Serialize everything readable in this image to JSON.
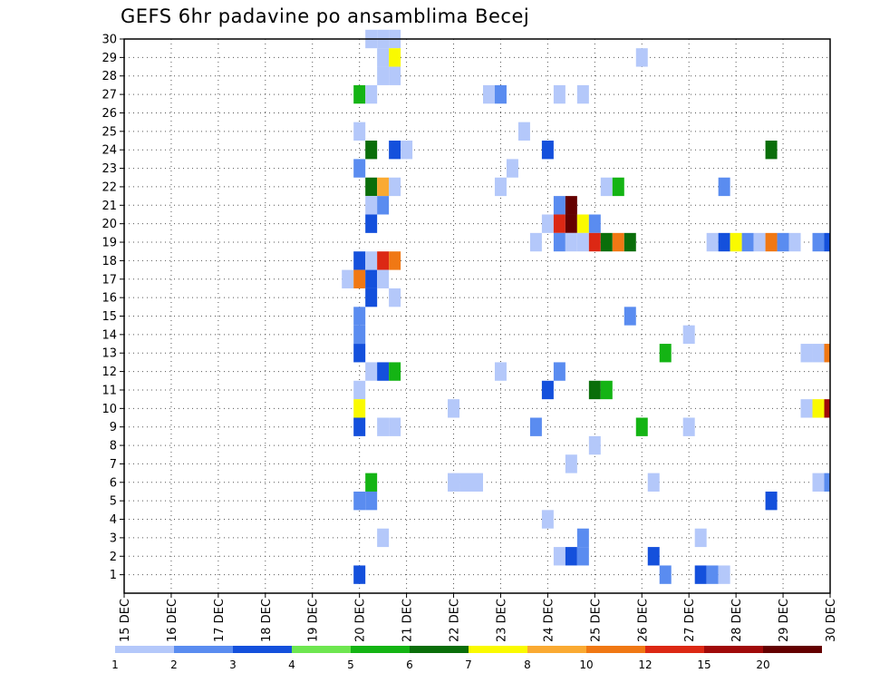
{
  "chart_data": {
    "type": "heatmap",
    "title": "GEFS 6hr padavine po ansamblima Becej",
    "x_ticks": [
      "15 DEC",
      "16 DEC",
      "17 DEC",
      "18 DEC",
      "19 DEC",
      "20 DEC",
      "21 DEC",
      "22 DEC",
      "23 DEC",
      "24 DEC",
      "25 DEC",
      "26 DEC",
      "27 DEC",
      "28 DEC",
      "29 DEC",
      "30 DEC"
    ],
    "y_ticks": [
      1,
      2,
      3,
      4,
      5,
      6,
      7,
      8,
      9,
      10,
      11,
      12,
      13,
      14,
      15,
      16,
      17,
      18,
      19,
      20,
      21,
      22,
      23,
      24,
      25,
      26,
      27,
      28,
      29,
      30
    ],
    "legend_labels": [
      "1",
      "2",
      "3",
      "4",
      "5",
      "6",
      "7",
      "8",
      "10",
      "12",
      "15",
      "20"
    ],
    "legend_colors": [
      "#b4c8fa",
      "#5a8cf0",
      "#1450dc",
      "#6ee650",
      "#14b414",
      "#0a6e0a",
      "#fafa00",
      "#faaa32",
      "#f07814",
      "#dc2814",
      "#a00a0a",
      "#640000"
    ],
    "cells_note": "each cell: [day (x, days after 15 DEC), member (y), value (mm)]",
    "cells": [
      [
        5.25,
        30,
        1
      ],
      [
        5.5,
        30,
        1
      ],
      [
        5.75,
        30,
        1
      ],
      [
        5.5,
        29,
        1
      ],
      [
        5.75,
        29,
        7
      ],
      [
        11.0,
        29,
        1
      ],
      [
        5.5,
        28,
        1
      ],
      [
        5.75,
        28,
        1
      ],
      [
        5.0,
        27,
        5
      ],
      [
        5.25,
        27,
        1
      ],
      [
        7.75,
        27,
        1
      ],
      [
        8.0,
        27,
        2
      ],
      [
        9.25,
        27,
        1
      ],
      [
        9.75,
        27,
        1
      ],
      [
        5.0,
        25,
        1
      ],
      [
        8.5,
        25,
        1
      ],
      [
        5.25,
        24,
        6
      ],
      [
        5.75,
        24,
        3
      ],
      [
        6.0,
        24,
        1
      ],
      [
        9.0,
        24,
        3
      ],
      [
        13.75,
        24,
        6
      ],
      [
        5.0,
        23,
        2
      ],
      [
        8.25,
        23,
        1
      ],
      [
        5.25,
        22,
        6
      ],
      [
        5.5,
        22,
        8
      ],
      [
        5.75,
        22,
        1
      ],
      [
        8.0,
        22,
        1
      ],
      [
        10.25,
        22,
        1
      ],
      [
        10.5,
        22,
        5
      ],
      [
        12.75,
        22,
        2
      ],
      [
        5.25,
        21,
        1
      ],
      [
        5.5,
        21,
        2
      ],
      [
        9.25,
        21,
        2
      ],
      [
        9.5,
        21,
        20
      ],
      [
        5.25,
        20,
        3
      ],
      [
        9.0,
        20,
        1
      ],
      [
        9.25,
        20,
        12
      ],
      [
        9.5,
        20,
        20
      ],
      [
        9.75,
        20,
        7
      ],
      [
        10.0,
        20,
        2
      ],
      [
        8.75,
        19,
        1
      ],
      [
        9.25,
        19,
        2
      ],
      [
        9.5,
        19,
        1
      ],
      [
        9.75,
        19,
        1
      ],
      [
        10.0,
        19,
        12
      ],
      [
        10.25,
        19,
        6
      ],
      [
        10.5,
        19,
        10
      ],
      [
        10.75,
        19,
        6
      ],
      [
        12.5,
        19,
        1
      ],
      [
        12.75,
        19,
        3
      ],
      [
        13.0,
        19,
        7
      ],
      [
        13.25,
        19,
        2
      ],
      [
        13.5,
        19,
        1
      ],
      [
        13.75,
        19,
        10
      ],
      [
        14.0,
        19,
        2
      ],
      [
        14.25,
        19,
        1
      ],
      [
        14.75,
        19,
        2
      ],
      [
        15.0,
        19,
        3
      ],
      [
        5.0,
        18,
        3
      ],
      [
        5.25,
        18,
        1
      ],
      [
        5.5,
        18,
        12
      ],
      [
        5.75,
        18,
        10
      ],
      [
        4.75,
        17,
        1
      ],
      [
        5.0,
        17,
        10
      ],
      [
        5.25,
        17,
        3
      ],
      [
        5.5,
        17,
        1
      ],
      [
        5.25,
        16,
        3
      ],
      [
        5.75,
        16,
        1
      ],
      [
        5.0,
        15,
        2
      ],
      [
        10.75,
        15,
        2
      ],
      [
        5.0,
        14,
        2
      ],
      [
        12.0,
        14,
        1
      ],
      [
        5.0,
        13,
        3
      ],
      [
        11.5,
        13,
        5
      ],
      [
        14.5,
        13,
        1
      ],
      [
        14.75,
        13,
        1
      ],
      [
        15.0,
        13,
        10
      ],
      [
        5.25,
        12,
        1
      ],
      [
        5.5,
        12,
        3
      ],
      [
        5.75,
        12,
        5
      ],
      [
        8.0,
        12,
        1
      ],
      [
        9.25,
        12,
        2
      ],
      [
        5.0,
        11,
        1
      ],
      [
        9.0,
        11,
        3
      ],
      [
        10.0,
        11,
        6
      ],
      [
        10.25,
        11,
        5
      ],
      [
        5.0,
        10,
        7
      ],
      [
        7.0,
        10,
        1
      ],
      [
        14.5,
        10,
        1
      ],
      [
        14.75,
        10,
        7
      ],
      [
        15.0,
        10,
        15
      ],
      [
        5.0,
        9,
        3
      ],
      [
        5.5,
        9,
        1
      ],
      [
        5.75,
        9,
        1
      ],
      [
        8.75,
        9,
        2
      ],
      [
        11.0,
        9,
        5
      ],
      [
        12.0,
        9,
        1
      ],
      [
        10.0,
        8,
        1
      ],
      [
        9.5,
        7,
        1
      ],
      [
        5.25,
        6,
        5
      ],
      [
        7.0,
        6,
        1
      ],
      [
        7.25,
        6,
        1
      ],
      [
        7.5,
        6,
        1
      ],
      [
        11.25,
        6,
        1
      ],
      [
        14.75,
        6,
        1
      ],
      [
        15.0,
        6,
        2
      ],
      [
        5.0,
        5,
        2
      ],
      [
        5.25,
        5,
        2
      ],
      [
        13.75,
        5,
        3
      ],
      [
        9.0,
        4,
        1
      ],
      [
        5.5,
        3,
        1
      ],
      [
        9.75,
        3,
        2
      ],
      [
        12.25,
        3,
        1
      ],
      [
        9.25,
        2,
        1
      ],
      [
        9.5,
        2,
        3
      ],
      [
        9.75,
        2,
        2
      ],
      [
        11.25,
        2,
        3
      ],
      [
        5.0,
        1,
        3
      ],
      [
        11.5,
        1,
        2
      ],
      [
        12.25,
        1,
        3
      ],
      [
        12.5,
        1,
        2
      ],
      [
        12.75,
        1,
        1
      ]
    ],
    "xlim": [
      0,
      15
    ],
    "ylim": [
      0,
      30
    ],
    "grid": true
  }
}
